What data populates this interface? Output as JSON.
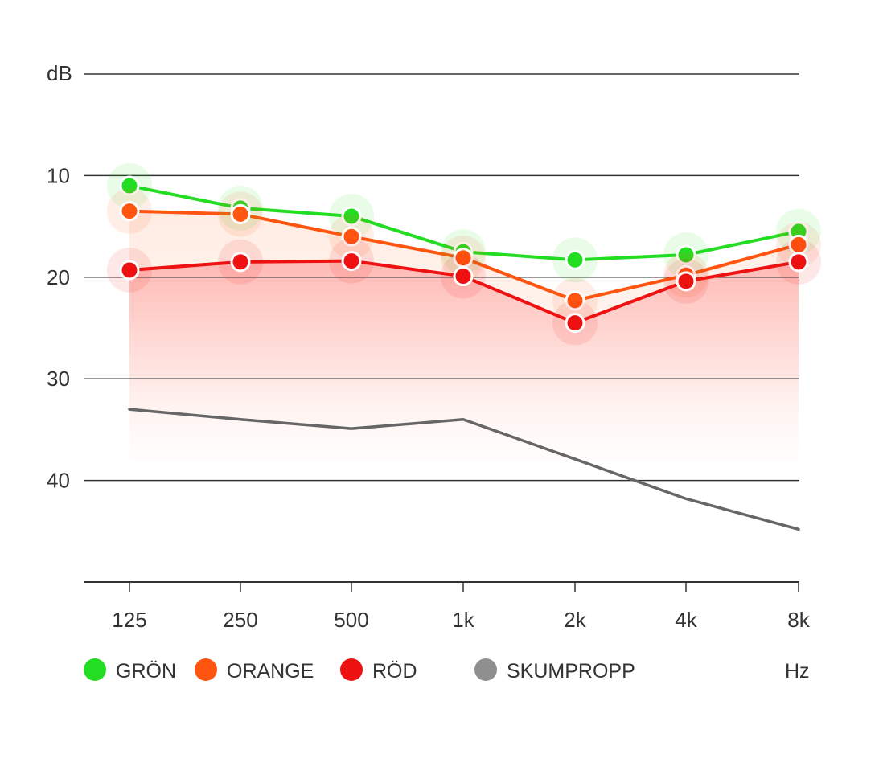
{
  "chart_data": {
    "type": "line",
    "title": "",
    "xlabel": "Hz",
    "ylabel": "dB",
    "categories": [
      "125",
      "250",
      "500",
      "1k",
      "2k",
      "4k",
      "8k"
    ],
    "y_ticks": [
      10,
      20,
      30,
      40
    ],
    "ylim": [
      0,
      50
    ],
    "y_inverted": true,
    "grid": true,
    "legend_position": "bottom",
    "series": [
      {
        "name": "GRÖN",
        "color": "#22dd22",
        "markers": true,
        "values": [
          11,
          13.2,
          14,
          17.5,
          18.3,
          17.8,
          15.5
        ]
      },
      {
        "name": "ORANGE",
        "color": "#ff5511",
        "markers": true,
        "values": [
          13.5,
          13.8,
          16,
          18.1,
          22.3,
          19.8,
          16.8
        ]
      },
      {
        "name": "RÖD",
        "color": "#ee1111",
        "markers": true,
        "values": [
          19.3,
          18.5,
          18.4,
          19.9,
          24.5,
          20.4,
          18.5
        ]
      },
      {
        "name": "SKUMPROPP",
        "color": "#666666",
        "markers": false,
        "values": [
          33,
          34,
          34.9,
          34,
          37.9,
          41.8,
          44.8
        ]
      }
    ]
  }
}
